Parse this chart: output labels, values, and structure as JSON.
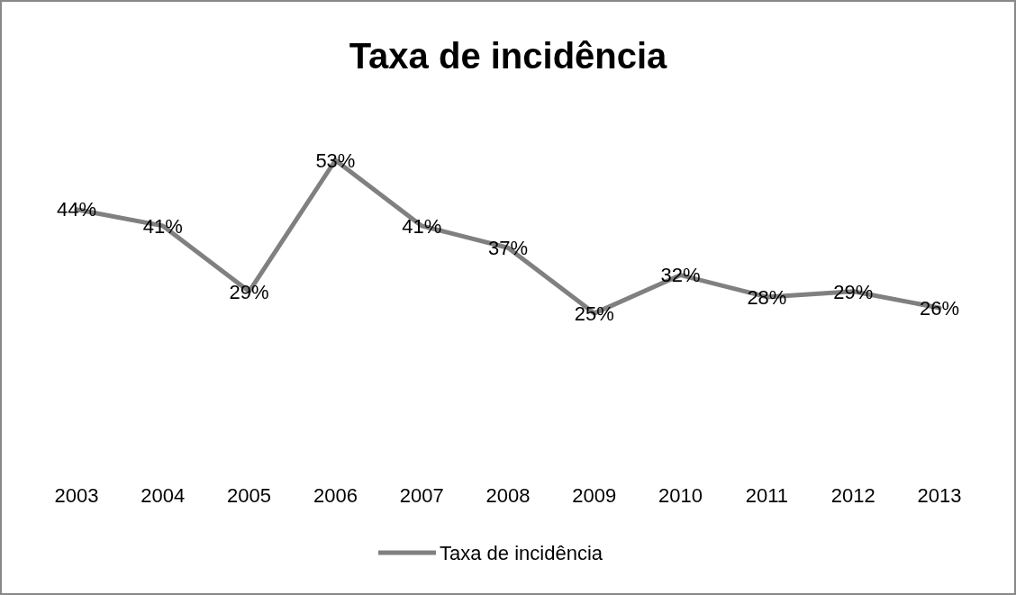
{
  "chart_data": {
    "type": "line",
    "title": "Taxa de incidência",
    "categories": [
      "2003",
      "2004",
      "2005",
      "2006",
      "2007",
      "2008",
      "2009",
      "2010",
      "2011",
      "2012",
      "2013"
    ],
    "series": [
      {
        "name": "Taxa de incidência",
        "color": "#808080",
        "values": [
          44,
          41,
          29,
          53,
          41,
          37,
          25,
          32,
          28,
          29,
          26
        ],
        "value_labels": [
          "44%",
          "41%",
          "29%",
          "53%",
          "41%",
          "37%",
          "25%",
          "32%",
          "28%",
          "29%",
          "26%"
        ]
      }
    ],
    "legend": "bottom",
    "marker": "none",
    "line_style": "solid"
  }
}
